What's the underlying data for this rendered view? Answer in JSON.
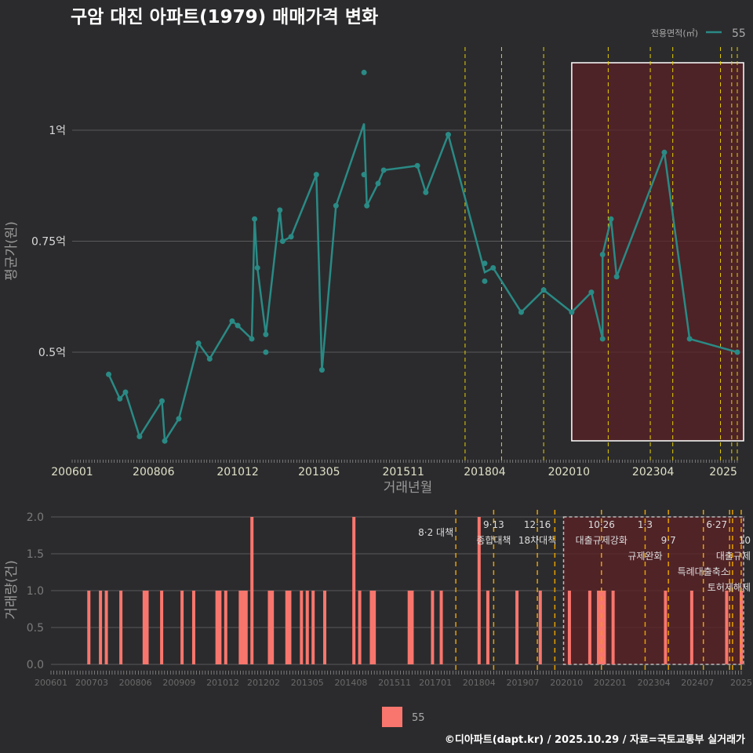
{
  "title": "구암 대진 아파트(1979) 매매가격 변화",
  "footer": "©디아파트(dapt.kr) / 2025.10.29 / 자료=국토교통부 실거래가",
  "colors": {
    "background": "#2b2b2d",
    "line": "#2a8a85",
    "bar": "#f8766d",
    "highlight": "#5a2226",
    "event": "#e5d000",
    "event_bottom": "#e6a000"
  },
  "chart_data": [
    {
      "type": "line",
      "title": "구암 대진 아파트(1979) 매매가격 변화",
      "xlabel": "거래년월",
      "ylabel": "평균가(원)",
      "xlim": [
        "200601",
        "202510"
      ],
      "ylim": [
        0.27,
        1.16
      ],
      "grid": true,
      "x_ticks": [
        "200601",
        "200806",
        "201012",
        "201305",
        "201511",
        "201804",
        "202010",
        "202304",
        "202505"
      ],
      "x_tick_labels": [
        "200601",
        "200806",
        "201012",
        "201305",
        "201511",
        "201804",
        "202010",
        "202304",
        "2025"
      ],
      "y_ticks": [
        0.5,
        0.75,
        1.0
      ],
      "y_tick_labels": [
        "0.5억",
        "0.75억",
        "1억"
      ],
      "legend": {
        "title": "전용면적(㎡)",
        "entries": [
          "55"
        ],
        "position": "top-right"
      },
      "highlight_range": [
        "202011",
        "202510"
      ],
      "series": [
        {
          "name": "55",
          "line": [
            [
              "200702",
              0.45
            ],
            [
              "200706",
              0.395
            ],
            [
              "200708",
              0.41
            ],
            [
              "200801",
              0.31
            ],
            [
              "200809",
              0.39
            ],
            [
              "200810",
              0.3
            ],
            [
              "200903",
              0.35
            ],
            [
              "200910",
              0.52
            ],
            [
              "201002",
              0.485
            ],
            [
              "201010",
              0.57
            ],
            [
              "201012",
              0.56
            ],
            [
              "201105",
              0.53
            ],
            [
              "201106",
              0.8
            ],
            [
              "201107",
              0.69
            ],
            [
              "201110",
              0.54
            ],
            [
              "201203",
              0.82
            ],
            [
              "201204",
              0.75
            ],
            [
              "201207",
              0.76
            ],
            [
              "201304",
              0.9
            ],
            [
              "201306",
              0.46
            ],
            [
              "201311",
              0.83
            ],
            [
              "201409",
              1.015
            ],
            [
              "201410",
              0.83
            ],
            [
              "201502",
              0.88
            ],
            [
              "201504",
              0.91
            ],
            [
              "201604",
              0.92
            ],
            [
              "201607",
              0.86
            ],
            [
              "201703",
              0.99
            ],
            [
              "201804",
              0.68
            ],
            [
              "201807",
              0.69
            ],
            [
              "201905",
              0.59
            ],
            [
              "202001",
              0.64
            ],
            [
              "202011",
              0.59
            ],
            [
              "202106",
              0.635
            ],
            [
              "202110",
              0.53
            ],
            [
              "202110",
              0.72
            ],
            [
              "202201",
              0.8
            ],
            [
              "202203",
              0.67
            ],
            [
              "202308",
              0.95
            ],
            [
              "202405",
              0.53
            ],
            [
              "202510",
              0.5
            ]
          ],
          "points": [
            [
              "200702",
              0.45
            ],
            [
              "200706",
              0.395
            ],
            [
              "200708",
              0.41
            ],
            [
              "200801",
              0.31
            ],
            [
              "200809",
              0.39
            ],
            [
              "200810",
              0.3
            ],
            [
              "200903",
              0.35
            ],
            [
              "200910",
              0.52
            ],
            [
              "201002",
              0.485
            ],
            [
              "201010",
              0.57
            ],
            [
              "201012",
              0.56
            ],
            [
              "201105",
              0.53
            ],
            [
              "201106",
              0.8
            ],
            [
              "201107",
              0.69
            ],
            [
              "201110",
              0.54
            ],
            [
              "201110",
              0.5
            ],
            [
              "201203",
              0.82
            ],
            [
              "201204",
              0.75
            ],
            [
              "201207",
              0.76
            ],
            [
              "201304",
              0.9
            ],
            [
              "201306",
              0.46
            ],
            [
              "201311",
              0.83
            ],
            [
              "201409",
              1.13
            ],
            [
              "201409",
              0.9
            ],
            [
              "201410",
              0.83
            ],
            [
              "201502",
              0.88
            ],
            [
              "201504",
              0.91
            ],
            [
              "201604",
              0.92
            ],
            [
              "201607",
              0.86
            ],
            [
              "201703",
              0.99
            ],
            [
              "201804",
              0.7
            ],
            [
              "201804",
              0.66
            ],
            [
              "201807",
              0.69
            ],
            [
              "201905",
              0.59
            ],
            [
              "202001",
              0.64
            ],
            [
              "202011",
              0.59
            ],
            [
              "202106",
              0.635
            ],
            [
              "202110",
              0.53
            ],
            [
              "202110",
              0.72
            ],
            [
              "202201",
              0.8
            ],
            [
              "202203",
              0.67
            ],
            [
              "202308",
              0.95
            ],
            [
              "202405",
              0.53
            ],
            [
              "202510",
              0.5
            ]
          ]
        }
      ],
      "events": [
        "201709",
        "201810",
        "202001",
        "202112",
        "202303",
        "202311",
        "202504",
        "202508",
        "202510"
      ]
    },
    {
      "type": "bar",
      "xlabel": "",
      "ylabel": "거래량(건)",
      "xlim": [
        "200601",
        "202510"
      ],
      "ylim": [
        0,
        2
      ],
      "y_ticks": [
        0.0,
        0.5,
        1.0,
        1.5,
        2.0
      ],
      "y_tick_labels": [
        "0.0",
        "0.5",
        "1.0",
        "1.5",
        "2.0"
      ],
      "x_ticks": [
        "200601",
        "200703",
        "200806",
        "200909",
        "201012",
        "201202",
        "201305",
        "201408",
        "201511",
        "201701",
        "201804",
        "201907",
        "202010",
        "202201",
        "202304",
        "202407",
        "202510"
      ],
      "x_tick_labels": [
        "200601",
        "200703",
        "200806",
        "200909",
        "201012",
        "201202",
        "201305",
        "201408",
        "201511",
        "201701",
        "201804",
        "201907",
        "202010",
        "202201",
        "202304",
        "202407",
        "2025"
      ],
      "legend": {
        "entries": [
          "55"
        ],
        "position": "bottom"
      },
      "highlight_range": [
        "202009",
        "202510"
      ],
      "series": [
        {
          "name": "55",
          "values": [
            [
              "200702",
              1
            ],
            [
              "200706",
              1
            ],
            [
              "200708",
              1
            ],
            [
              "200801",
              1
            ],
            [
              "200809",
              1
            ],
            [
              "200810",
              1
            ],
            [
              "200903",
              1
            ],
            [
              "200910",
              1
            ],
            [
              "201002",
              1
            ],
            [
              "201010",
              1
            ],
            [
              "201011",
              1
            ],
            [
              "201101",
              1
            ],
            [
              "201106",
              1
            ],
            [
              "201107",
              1
            ],
            [
              "201108",
              1
            ],
            [
              "201110",
              2
            ],
            [
              "201204",
              1
            ],
            [
              "201205",
              1
            ],
            [
              "201210",
              1
            ],
            [
              "201211",
              1
            ],
            [
              "201303",
              1
            ],
            [
              "201305",
              1
            ],
            [
              "201307",
              1
            ],
            [
              "201311",
              1
            ],
            [
              "201409",
              2
            ],
            [
              "201411",
              1
            ],
            [
              "201503",
              1
            ],
            [
              "201504",
              1
            ],
            [
              "201604",
              1
            ],
            [
              "201605",
              1
            ],
            [
              "201612",
              1
            ],
            [
              "201703",
              1
            ],
            [
              "201804",
              2
            ],
            [
              "201807",
              1
            ],
            [
              "201905",
              1
            ],
            [
              "202001",
              1
            ],
            [
              "202011",
              1
            ],
            [
              "202106",
              1
            ],
            [
              "202109",
              1
            ],
            [
              "202110",
              1
            ],
            [
              "202111",
              1
            ],
            [
              "202202",
              1
            ],
            [
              "202308",
              1
            ],
            [
              "202405",
              1
            ],
            [
              "202505",
              1
            ],
            [
              "202510",
              1
            ]
          ]
        }
      ],
      "events": [
        {
          "date": "201708",
          "line1": "8·2 대책",
          "line2": ""
        },
        {
          "date": "201809",
          "line1": "9·13",
          "line2": "종합대책"
        },
        {
          "date": "201912",
          "line1": "12·16",
          "line2": "18차대책"
        },
        {
          "date": "202006",
          "line1": "",
          "line2": ""
        },
        {
          "date": "202110",
          "line1": "10·26",
          "line2": "대출규제강화"
        },
        {
          "date": "202301",
          "line1": "1·3",
          "line2": "규제완화"
        },
        {
          "date": "202309",
          "line1": "",
          "line2": "9·7"
        },
        {
          "date": "202409",
          "line1": "",
          "line2": "특례대출축소"
        },
        {
          "date": "202506",
          "line1": "6·27",
          "line2": "대출규제"
        },
        {
          "date": "202507",
          "line1": "",
          "line2": "토허제해제"
        },
        {
          "date": "202510",
          "line1": "10",
          "line2": ""
        }
      ]
    }
  ]
}
